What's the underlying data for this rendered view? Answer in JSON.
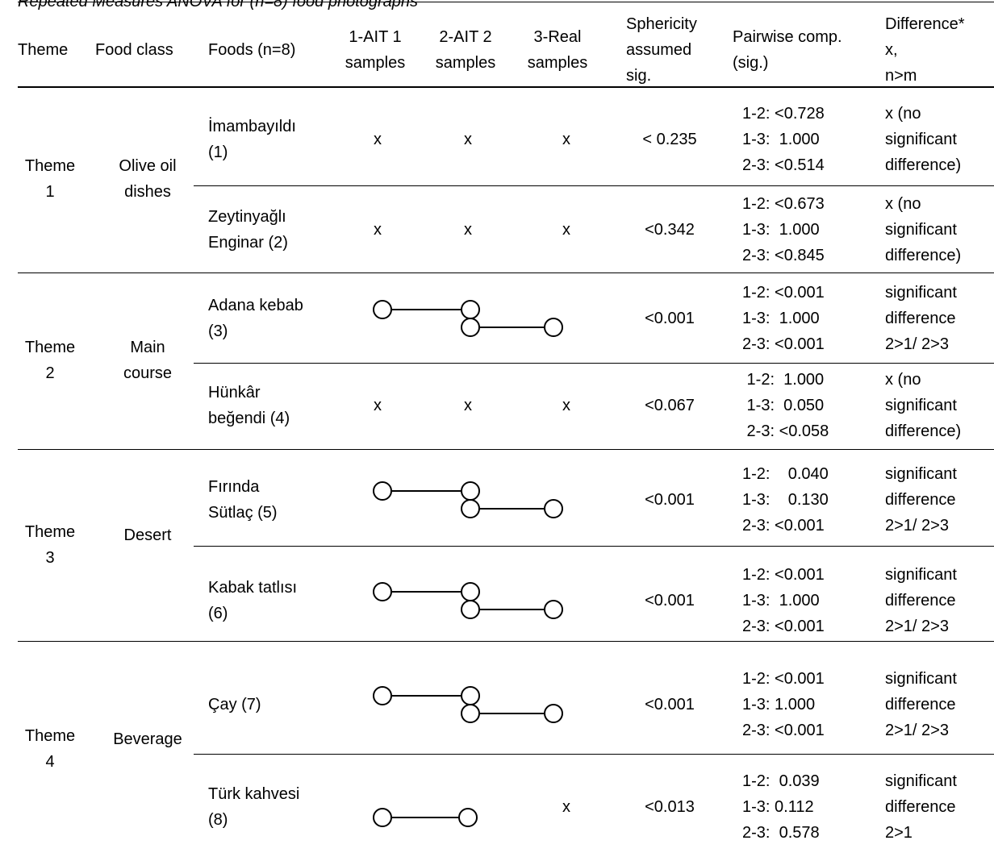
{
  "caption": "Repeated Measures ANOVA for (n=8) food photographs",
  "headers": [
    "Theme",
    "Food class",
    "Foods (n=8)",
    "1-AIT 1\nsamples",
    "2-AIT 2\nsamples",
    "3-Real\nsamples",
    "Sphericity\nassumed\nsig.",
    "Pairwise comp.\n(sig.)",
    "Difference*\nx,\nn>m"
  ],
  "themes": [
    {
      "theme": "Theme\n1",
      "food_class": "Olive oil\ndishes"
    },
    {
      "theme": "Theme\n2",
      "food_class": "Main\ncourse"
    },
    {
      "theme": "Theme\n3",
      "food_class": "Desert"
    },
    {
      "theme": "Theme\n4",
      "food_class": "Beverage"
    }
  ],
  "rows": [
    {
      "food": "İmambayıldı\n(1)",
      "ait1": "x",
      "ait2": "x",
      "real": "x",
      "sig": "< 0.235",
      "pairwise": [
        "1-2: <0.728",
        "1-3:  1.000",
        "2-3: <0.514"
      ],
      "difference": "x (no\nsignificant\ndifference)"
    },
    {
      "food": "Zeytinyağlı\nEnginar (2)",
      "ait1": "x",
      "ait2": "x",
      "real": "x",
      "sig": "<0.342",
      "pairwise": [
        "1-2: <0.673",
        "1-3:  1.000",
        "2-3: <0.845"
      ],
      "difference": "x (no\nsignificant\ndifference)"
    },
    {
      "food": "Adana kebab\n(3)",
      "sig": "<0.001",
      "pairwise": [
        "1-2: <0.001",
        "1-3:  1.000",
        "2-3: <0.001"
      ],
      "difference": "significant\ndifference\n2>1/ 2>3"
    },
    {
      "food": "Hünkâr\nbeğendi (4)",
      "ait1": "x",
      "ait2": "x",
      "real": "x",
      "sig": "<0.067",
      "pairwise": [
        " 1-2:  1.000",
        " 1-3:  0.050",
        " 2-3: <0.058"
      ],
      "difference": "x (no\nsignificant\ndifference)"
    },
    {
      "food": "Fırında\nSütlaç (5)",
      "sig": "<0.001",
      "pairwise": [
        "1-2:    0.040",
        "1-3:    0.130",
        "2-3: <0.001"
      ],
      "difference": "significant\ndifference\n2>1/ 2>3"
    },
    {
      "food": "Kabak tatlısı\n(6)",
      "sig": "<0.001",
      "pairwise": [
        "1-2: <0.001",
        "1-3:  1.000",
        "2-3: <0.001"
      ],
      "difference": "significant\ndifference\n2>1/ 2>3"
    },
    {
      "food": "Çay (7)",
      "sig": "<0.001",
      "pairwise": [
        "1-2: <0.001",
        "1-3: 1.000",
        "2-3: <0.001"
      ],
      "difference": "significant\ndifference\n2>1/ 2>3"
    },
    {
      "food": "Türk kahvesi\n(8)",
      "real": "x",
      "sig": "<0.013",
      "pairwise": [
        "1-2:  0.039",
        "1-3: 0.112",
        "2-3:  0.578"
      ],
      "difference": "significant\ndifference\n2>1"
    }
  ]
}
